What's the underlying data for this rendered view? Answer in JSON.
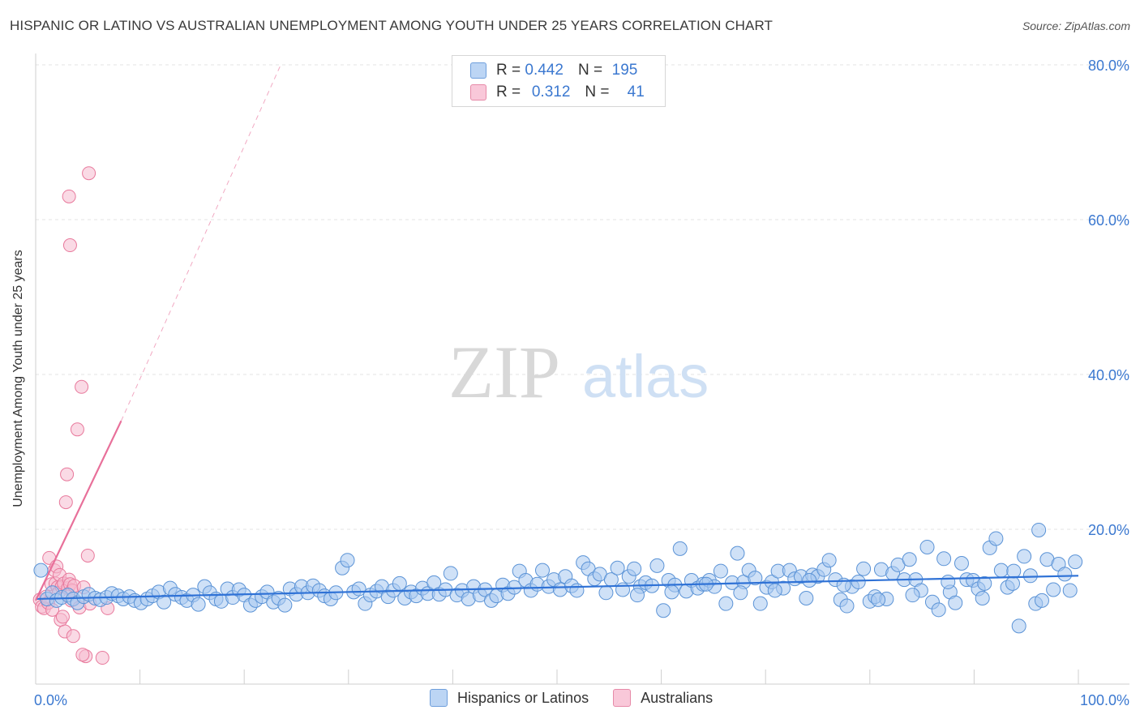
{
  "chart_data": {
    "type": "scatter",
    "title": "HISPANIC OR LATINO VS AUSTRALIAN UNEMPLOYMENT AMONG YOUTH UNDER 25 YEARS CORRELATION CHART",
    "source": "Source: ZipAtlas.com",
    "xlabel": "",
    "ylabel": "Unemployment Among Youth under 25 years",
    "xlim": [
      0,
      100
    ],
    "ylim": [
      0,
      80
    ],
    "x_tick_labels": [
      "0.0%",
      "100.0%"
    ],
    "y_tick_labels": [
      "80.0%",
      "60.0%",
      "40.0%",
      "20.0%"
    ],
    "y_ticks": [
      80,
      60,
      40,
      20
    ],
    "grid": true,
    "watermark": "ZIPatlas",
    "colors": {
      "blue_fill": "#a8c8f0",
      "blue_stroke": "#5b93d6",
      "blue_line": "#2f72d6",
      "pink_fill": "#f6bcd0",
      "pink_stroke": "#e8799c",
      "pink_line": "#e8709a",
      "tick_text": "#3b78d0"
    },
    "stats": [
      {
        "r_label": "R =",
        "r": "0.442",
        "n_label": "N =",
        "n": "195"
      },
      {
        "r_label": "R =",
        "r": "0.312",
        "n_label": "N =",
        "n": "41"
      }
    ],
    "legend": [
      "Hispanics or Latinos",
      "Australians"
    ],
    "series": [
      {
        "name": "Hispanics or Latinos",
        "trend": {
          "x0": 0,
          "y0": 11.0,
          "x1": 100,
          "y1": 14.0
        },
        "points": [
          [
            0.5,
            14.7
          ],
          [
            1.1,
            11.0
          ],
          [
            1.6,
            11.8
          ],
          [
            2.0,
            10.8
          ],
          [
            2.5,
            11.2
          ],
          [
            3.1,
            11.5
          ],
          [
            3.6,
            11.0
          ],
          [
            4.0,
            10.5
          ],
          [
            4.6,
            11.3
          ],
          [
            5.1,
            11.6
          ],
          [
            5.7,
            11.1
          ],
          [
            6.2,
            10.9
          ],
          [
            6.8,
            11.2
          ],
          [
            7.3,
            11.7
          ],
          [
            7.9,
            11.4
          ],
          [
            8.4,
            11.0
          ],
          [
            9.0,
            11.3
          ],
          [
            9.5,
            10.8
          ],
          [
            10.1,
            10.5
          ],
          [
            10.7,
            11.0
          ],
          [
            11.2,
            11.4
          ],
          [
            11.8,
            11.9
          ],
          [
            12.3,
            10.6
          ],
          [
            12.9,
            12.4
          ],
          [
            13.4,
            11.6
          ],
          [
            14.0,
            11.2
          ],
          [
            14.5,
            10.8
          ],
          [
            15.1,
            11.5
          ],
          [
            15.6,
            10.3
          ],
          [
            16.2,
            12.6
          ],
          [
            16.7,
            11.8
          ],
          [
            17.3,
            11.0
          ],
          [
            17.8,
            10.7
          ],
          [
            18.4,
            12.3
          ],
          [
            18.9,
            11.2
          ],
          [
            19.5,
            12.2
          ],
          [
            20.0,
            11.5
          ],
          [
            20.6,
            10.2
          ],
          [
            21.1,
            10.8
          ],
          [
            21.7,
            11.3
          ],
          [
            22.2,
            11.9
          ],
          [
            22.8,
            10.6
          ],
          [
            23.3,
            11.1
          ],
          [
            23.9,
            10.2
          ],
          [
            24.4,
            12.3
          ],
          [
            25.0,
            11.6
          ],
          [
            25.5,
            12.6
          ],
          [
            26.1,
            11.8
          ],
          [
            26.6,
            12.7
          ],
          [
            27.2,
            12.1
          ],
          [
            27.7,
            11.4
          ],
          [
            28.3,
            11.0
          ],
          [
            28.8,
            11.8
          ],
          [
            29.4,
            15.0
          ],
          [
            29.9,
            16.0
          ],
          [
            30.5,
            11.9
          ],
          [
            31.0,
            12.3
          ],
          [
            31.6,
            10.4
          ],
          [
            32.1,
            11.5
          ],
          [
            32.7,
            12.0
          ],
          [
            33.2,
            12.6
          ],
          [
            33.8,
            11.3
          ],
          [
            34.3,
            12.1
          ],
          [
            34.9,
            13.0
          ],
          [
            35.4,
            11.1
          ],
          [
            36.0,
            11.9
          ],
          [
            36.5,
            11.4
          ],
          [
            37.1,
            12.4
          ],
          [
            37.6,
            11.7
          ],
          [
            38.2,
            13.1
          ],
          [
            38.7,
            11.6
          ],
          [
            39.3,
            12.2
          ],
          [
            39.8,
            14.3
          ],
          [
            40.4,
            11.5
          ],
          [
            40.9,
            12.1
          ],
          [
            41.5,
            11.0
          ],
          [
            42.0,
            12.6
          ],
          [
            42.6,
            11.5
          ],
          [
            43.1,
            12.2
          ],
          [
            43.7,
            10.8
          ],
          [
            44.2,
            11.4
          ],
          [
            44.8,
            12.8
          ],
          [
            45.3,
            11.7
          ],
          [
            45.9,
            12.5
          ],
          [
            46.4,
            14.6
          ],
          [
            47.0,
            13.4
          ],
          [
            47.5,
            12.1
          ],
          [
            48.1,
            12.9
          ],
          [
            48.6,
            14.7
          ],
          [
            49.2,
            12.6
          ],
          [
            49.7,
            13.5
          ],
          [
            50.3,
            12.2
          ],
          [
            50.8,
            13.9
          ],
          [
            51.4,
            12.7
          ],
          [
            51.9,
            12.1
          ],
          [
            52.5,
            15.7
          ],
          [
            53.0,
            14.9
          ],
          [
            53.6,
            13.6
          ],
          [
            54.1,
            14.2
          ],
          [
            54.7,
            11.8
          ],
          [
            55.2,
            13.5
          ],
          [
            55.8,
            15.0
          ],
          [
            56.3,
            12.2
          ],
          [
            56.9,
            13.9
          ],
          [
            57.4,
            14.9
          ],
          [
            58.0,
            12.6
          ],
          [
            58.5,
            13.1
          ],
          [
            59.1,
            12.7
          ],
          [
            59.6,
            15.3
          ],
          [
            60.2,
            9.5
          ],
          [
            60.7,
            13.4
          ],
          [
            61.3,
            12.8
          ],
          [
            61.8,
            17.5
          ],
          [
            62.4,
            12.0
          ],
          [
            62.9,
            13.4
          ],
          [
            63.5,
            12.4
          ],
          [
            64.0,
            12.9
          ],
          [
            64.6,
            13.4
          ],
          [
            65.1,
            12.6
          ],
          [
            65.7,
            14.6
          ],
          [
            66.2,
            10.4
          ],
          [
            66.8,
            13.1
          ],
          [
            67.3,
            16.9
          ],
          [
            67.9,
            13.2
          ],
          [
            68.4,
            14.7
          ],
          [
            69.0,
            13.7
          ],
          [
            69.5,
            10.4
          ],
          [
            70.1,
            12.5
          ],
          [
            70.6,
            13.2
          ],
          [
            71.2,
            14.6
          ],
          [
            71.7,
            12.4
          ],
          [
            72.3,
            14.7
          ],
          [
            72.8,
            13.6
          ],
          [
            73.4,
            13.9
          ],
          [
            73.9,
            11.1
          ],
          [
            74.5,
            14.1
          ],
          [
            75.0,
            13.9
          ],
          [
            75.6,
            14.8
          ],
          [
            76.1,
            16.0
          ],
          [
            76.7,
            13.5
          ],
          [
            77.2,
            10.9
          ],
          [
            77.8,
            10.1
          ],
          [
            78.3,
            12.6
          ],
          [
            78.9,
            13.2
          ],
          [
            79.4,
            14.9
          ],
          [
            80.0,
            10.7
          ],
          [
            80.5,
            11.3
          ],
          [
            81.1,
            14.8
          ],
          [
            81.6,
            11.0
          ],
          [
            82.2,
            14.3
          ],
          [
            82.7,
            15.4
          ],
          [
            83.3,
            13.5
          ],
          [
            83.8,
            16.1
          ],
          [
            84.4,
            13.5
          ],
          [
            84.9,
            12.1
          ],
          [
            85.5,
            17.7
          ],
          [
            86.0,
            10.6
          ],
          [
            86.6,
            9.6
          ],
          [
            87.1,
            16.2
          ],
          [
            87.7,
            11.9
          ],
          [
            88.2,
            10.5
          ],
          [
            88.8,
            15.6
          ],
          [
            89.3,
            13.5
          ],
          [
            89.9,
            13.4
          ],
          [
            90.4,
            12.3
          ],
          [
            91.0,
            13.0
          ],
          [
            91.5,
            17.6
          ],
          [
            92.1,
            18.8
          ],
          [
            92.6,
            14.7
          ],
          [
            93.2,
            12.5
          ],
          [
            93.7,
            13.0
          ],
          [
            94.3,
            7.5
          ],
          [
            94.8,
            16.5
          ],
          [
            95.4,
            14.0
          ],
          [
            95.9,
            10.4
          ],
          [
            96.5,
            10.8
          ],
          [
            97.0,
            16.1
          ],
          [
            97.6,
            12.2
          ],
          [
            98.1,
            15.5
          ],
          [
            98.7,
            14.2
          ],
          [
            99.2,
            12.1
          ],
          [
            99.7,
            15.8
          ],
          [
            96.2,
            19.9
          ],
          [
            93.8,
            14.6
          ],
          [
            90.8,
            11.1
          ],
          [
            87.5,
            13.2
          ],
          [
            84.1,
            11.5
          ],
          [
            80.8,
            10.9
          ],
          [
            77.5,
            12.8
          ],
          [
            74.2,
            13.4
          ],
          [
            70.9,
            12.1
          ],
          [
            67.6,
            11.8
          ],
          [
            64.3,
            12.9
          ],
          [
            61.0,
            11.9
          ],
          [
            57.7,
            11.5
          ]
        ]
      },
      {
        "name": "Australians",
        "trend_solid": {
          "x0": 0,
          "y0": 10.8,
          "x1": 8.2,
          "y1": 34.0
        },
        "trend_dashed": {
          "x0": 8.2,
          "y0": 34.0,
          "x1": 23.5,
          "y1": 80.0
        },
        "points": [
          [
            0.4,
            10.9
          ],
          [
            0.6,
            10.0
          ],
          [
            0.8,
            9.8
          ],
          [
            1.0,
            11.3
          ],
          [
            1.2,
            10.5
          ],
          [
            1.3,
            16.3
          ],
          [
            1.5,
            12.9
          ],
          [
            1.6,
            9.6
          ],
          [
            1.8,
            14.7
          ],
          [
            1.9,
            13.0
          ],
          [
            2.0,
            15.2
          ],
          [
            2.1,
            12.5
          ],
          [
            2.2,
            11.8
          ],
          [
            2.3,
            14.1
          ],
          [
            2.4,
            8.3
          ],
          [
            2.5,
            12.6
          ],
          [
            2.6,
            8.7
          ],
          [
            2.7,
            13.0
          ],
          [
            2.8,
            6.8
          ],
          [
            2.9,
            23.5
          ],
          [
            3.0,
            27.1
          ],
          [
            3.1,
            12.4
          ],
          [
            3.2,
            13.5
          ],
          [
            3.3,
            12.9
          ],
          [
            3.4,
            10.8
          ],
          [
            3.5,
            12.1
          ],
          [
            3.6,
            6.2
          ],
          [
            3.7,
            12.7
          ],
          [
            3.2,
            63.0
          ],
          [
            4.0,
            32.9
          ],
          [
            4.2,
            9.9
          ],
          [
            4.4,
            38.4
          ],
          [
            4.6,
            12.5
          ],
          [
            4.8,
            3.6
          ],
          [
            5.0,
            16.6
          ],
          [
            3.3,
            56.7
          ],
          [
            4.5,
            3.8
          ],
          [
            5.2,
            10.4
          ],
          [
            6.4,
            3.4
          ],
          [
            6.9,
            9.8
          ],
          [
            5.1,
            66.0
          ]
        ]
      }
    ]
  }
}
